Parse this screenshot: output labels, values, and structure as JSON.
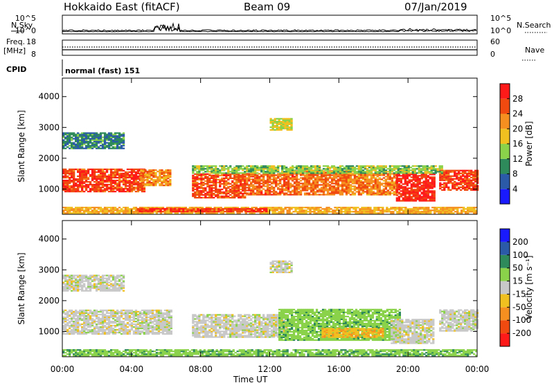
{
  "header": {
    "station": "Hokkaido East (fitACF)",
    "beam": "Beam 09",
    "date": "07/Jan/2019"
  },
  "panels": {
    "nsky_label": "N.Sky",
    "nsearch_label": "N.Search",
    "freq_label_1": "Freq.",
    "freq_label_2": "[MHz]",
    "nave_label": "Nave",
    "cpid_label": "CPID",
    "cpid_text": "normal (fast) 151",
    "nsky_ticks": [
      "10^5",
      "10^0"
    ],
    "nsearch_ticks": [
      "10^5",
      "10^0"
    ],
    "freq_ticks": [
      "18",
      "8"
    ],
    "nave_ticks": [
      "60",
      "0"
    ]
  },
  "colors": {
    "power_scale": [
      "#1a1aff",
      "#2a5aa8",
      "#2e8a5a",
      "#8ad24a",
      "#f0c020",
      "#f59020",
      "#f04a10",
      "#ff1a1a"
    ],
    "velocity_scale": [
      "#ff1a1a",
      "#f04a10",
      "#f59020",
      "#f0c020",
      "#c8c8c8",
      "#8ad24a",
      "#2e8a5a",
      "#2a5aa8",
      "#1a1aff"
    ]
  },
  "chart_data": [
    {
      "type": "heatmap",
      "title": "",
      "xlabel": "Time UT",
      "ylabel": "Slant Range [km]",
      "x_ticks": [
        "00:00",
        "04:00",
        "08:00",
        "12:00",
        "16:00",
        "20:00",
        "00:00"
      ],
      "y_ticks": [
        "1000",
        "2000",
        "3000",
        "4000"
      ],
      "xlim": [
        0,
        24
      ],
      "ylim": [
        180,
        4600
      ],
      "colorbar": {
        "label": "Power [dB]",
        "ticks": [
          "4",
          "8",
          "12",
          "16",
          "20",
          "24",
          "28"
        ],
        "range": [
          0,
          30
        ]
      },
      "regions": [
        {
          "t0": 0.0,
          "t1": 4.7,
          "r0": 900,
          "r1": 1650,
          "v": 27
        },
        {
          "t0": 4.5,
          "t1": 6.2,
          "r0": 1100,
          "r1": 1600,
          "v": 22
        },
        {
          "t0": 7.5,
          "t1": 10.5,
          "r0": 700,
          "r1": 1500,
          "v": 26
        },
        {
          "t0": 10.5,
          "t1": 13.5,
          "r0": 800,
          "r1": 1500,
          "v": 25
        },
        {
          "t0": 13.5,
          "t1": 16.5,
          "r0": 800,
          "r1": 1600,
          "v": 24
        },
        {
          "t0": 16.5,
          "t1": 19.3,
          "r0": 800,
          "r1": 1500,
          "v": 23
        },
        {
          "t0": 19.3,
          "t1": 21.5,
          "r0": 600,
          "r1": 1500,
          "v": 29
        },
        {
          "t0": 21.8,
          "t1": 24.0,
          "r0": 950,
          "r1": 1600,
          "v": 27
        },
        {
          "t0": 0.0,
          "t1": 24.0,
          "r0": 200,
          "r1": 400,
          "v": 20
        },
        {
          "t0": 4.3,
          "t1": 11.8,
          "r0": 250,
          "r1": 380,
          "v": 28
        },
        {
          "t0": 7.5,
          "t1": 22.0,
          "r0": 1500,
          "r1": 1750,
          "v": 14
        },
        {
          "t0": 0.0,
          "t1": 3.5,
          "r0": 2300,
          "r1": 2800,
          "v": 9
        },
        {
          "t0": 12.0,
          "t1": 13.2,
          "r0": 2900,
          "r1": 3300,
          "v": 16
        }
      ]
    },
    {
      "type": "heatmap",
      "title": "",
      "xlabel": "Time UT",
      "ylabel": "Slant Range [km]",
      "x_ticks": [
        "00:00",
        "04:00",
        "08:00",
        "12:00",
        "16:00",
        "20:00",
        "00:00"
      ],
      "y_ticks": [
        "1000",
        "2000",
        "3000",
        "4000"
      ],
      "xlim": [
        0,
        24
      ],
      "ylim": [
        180,
        4600
      ],
      "colorbar": {
        "label": "Velocity [m s⁻¹]",
        "ticks": [
          "200",
          "100",
          "50",
          "15",
          "-15",
          "-50",
          "-100",
          "-200"
        ],
        "range": [
          -250,
          250
        ]
      },
      "regions": [
        {
          "t0": 0.0,
          "t1": 6.3,
          "r0": 900,
          "r1": 1700,
          "v": 0
        },
        {
          "t0": 7.5,
          "t1": 13.0,
          "r0": 800,
          "r1": 1550,
          "v": 0
        },
        {
          "t0": 12.5,
          "t1": 19.5,
          "r0": 700,
          "r1": 1700,
          "v": 35
        },
        {
          "t0": 19.0,
          "t1": 21.5,
          "r0": 600,
          "r1": 1400,
          "v": 0
        },
        {
          "t0": 21.8,
          "t1": 24.0,
          "r0": 1000,
          "r1": 1700,
          "v": 0
        },
        {
          "t0": 0.0,
          "t1": 24.0,
          "r0": 200,
          "r1": 400,
          "v": 40
        },
        {
          "t0": 15.0,
          "t1": 18.5,
          "r0": 800,
          "r1": 1100,
          "v": -40
        },
        {
          "t0": 0.0,
          "t1": 3.5,
          "r0": 2300,
          "r1": 2800,
          "v": 0
        },
        {
          "t0": 12.0,
          "t1": 13.2,
          "r0": 2900,
          "r1": 3300,
          "v": 0
        }
      ]
    }
  ]
}
